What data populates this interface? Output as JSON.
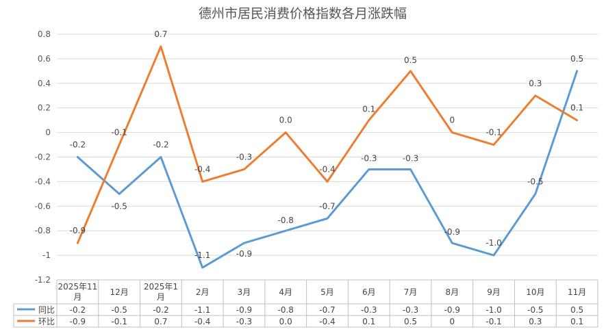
{
  "chart_data": {
    "type": "line",
    "title": "德州市居民消费价格指数各月涨跌幅",
    "categories": [
      [
        "2025年11",
        "月"
      ],
      [
        "12月"
      ],
      [
        "2025年1",
        "月"
      ],
      [
        "2月"
      ],
      [
        "3月"
      ],
      [
        "4月"
      ],
      [
        "5月"
      ],
      [
        "6月"
      ],
      [
        "7月"
      ],
      [
        "8月"
      ],
      [
        "9月"
      ],
      [
        "10月"
      ],
      [
        "11月"
      ]
    ],
    "yticks": [
      "0.8",
      "0.6",
      "0.4",
      "0.2",
      "0",
      "-0.2",
      "-0.4",
      "-0.6",
      "-0.8",
      "-1",
      "-1.2"
    ],
    "ylim": [
      -1.2,
      0.8
    ],
    "grid": true,
    "series": [
      {
        "name": "同比",
        "color": "#5b9bd5",
        "values": [
          -0.2,
          -0.5,
          -0.2,
          -1.1,
          -0.9,
          -0.8,
          -0.7,
          -0.3,
          -0.3,
          -0.9,
          -1.0,
          -0.5,
          0.5
        ],
        "labels": [
          "-0.2",
          "-0.5",
          "-0.2",
          "-1.1",
          "-0.9",
          "-0.8",
          "-0.7",
          "-0.3",
          "-0.3",
          "-0.9",
          "-1.0",
          "-0.5",
          "0.5"
        ]
      },
      {
        "name": "环比",
        "color": "#ed7d31",
        "values": [
          -0.9,
          -0.1,
          0.7,
          -0.4,
          -0.3,
          0.0,
          -0.4,
          0.1,
          0.5,
          0,
          -0.1,
          0.3,
          0.1
        ],
        "labels": [
          "-0.9",
          "-0.1",
          "0.7",
          "-0.4",
          "-0.3",
          "0.0",
          "-0.4",
          "0.1",
          "0.5",
          "0",
          "-0.1",
          "0.3",
          "0.1"
        ]
      }
    ]
  }
}
